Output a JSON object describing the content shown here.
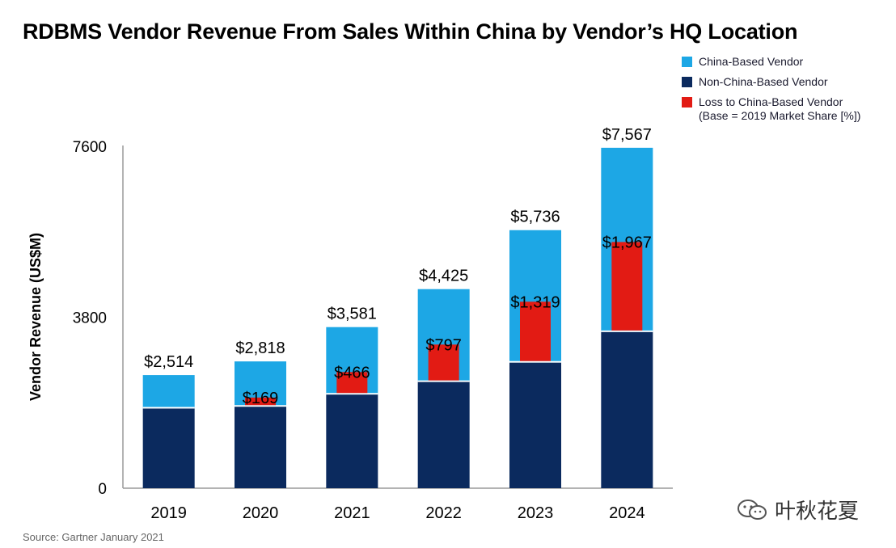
{
  "title": "RDBMS Vendor Revenue From Sales Within China by Vendor’s HQ Location",
  "source": "Source: Gartner January 2021",
  "watermark": "叶秋花夏",
  "legend": {
    "china": "China-Based Vendor",
    "non_china": "Non-China-Based Vendor",
    "loss_line1": "Loss to China-Based Vendor",
    "loss_line2": "(Base = 2019 Market Share [%])"
  },
  "colors": {
    "china": "#1da7e5",
    "non_china": "#0b2a5e",
    "loss": "#e21b14"
  },
  "chart_data": {
    "type": "bar",
    "title": "RDBMS Vendor Revenue From Sales Within China by Vendor’s HQ Location",
    "ylabel": "Vendor Revenue (US$M)",
    "xlabel": "",
    "ylim": [
      0,
      7600
    ],
    "yticks": [
      "0",
      "3800",
      "7600"
    ],
    "categories": [
      "2019",
      "2020",
      "2021",
      "2022",
      "2023",
      "2024"
    ],
    "totals": [
      2514,
      2818,
      3581,
      4425,
      5736,
      7567
    ],
    "total_labels": [
      "$2,514",
      "$2,818",
      "$3,581",
      "$4,425",
      "$5,736",
      "$7,567"
    ],
    "series": [
      {
        "name": "Non-China-Based Vendor",
        "values": [
          1770,
          1810,
          2080,
          2360,
          2790,
          3470
        ]
      },
      {
        "name": "China-Based Vendor",
        "values": [
          744,
          1008,
          1501,
          2065,
          2946,
          4097
        ]
      },
      {
        "name": "Loss to China-Based Vendor (Base = 2019 Market Share [%])",
        "values": [
          0,
          169,
          466,
          797,
          1319,
          1967
        ]
      }
    ],
    "loss_labels": [
      "",
      "$169",
      "$466",
      "$797",
      "$1,319",
      "$1,967"
    ]
  }
}
